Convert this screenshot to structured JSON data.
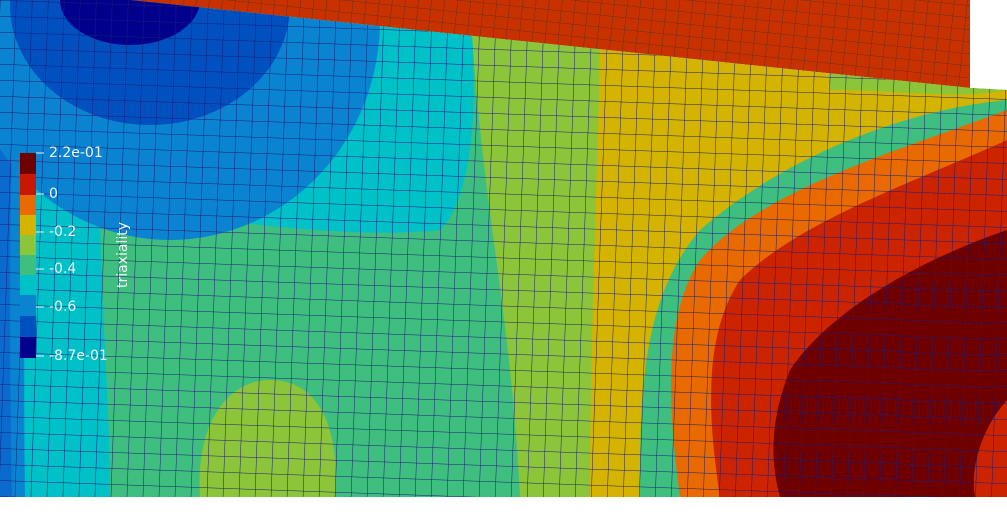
{
  "colorbar": {
    "title": "triaxiality",
    "ticks": [
      "2.2e-01",
      "0",
      "-0.2",
      "-0.4",
      "-0.6",
      "-8.7e-01"
    ]
  }
}
